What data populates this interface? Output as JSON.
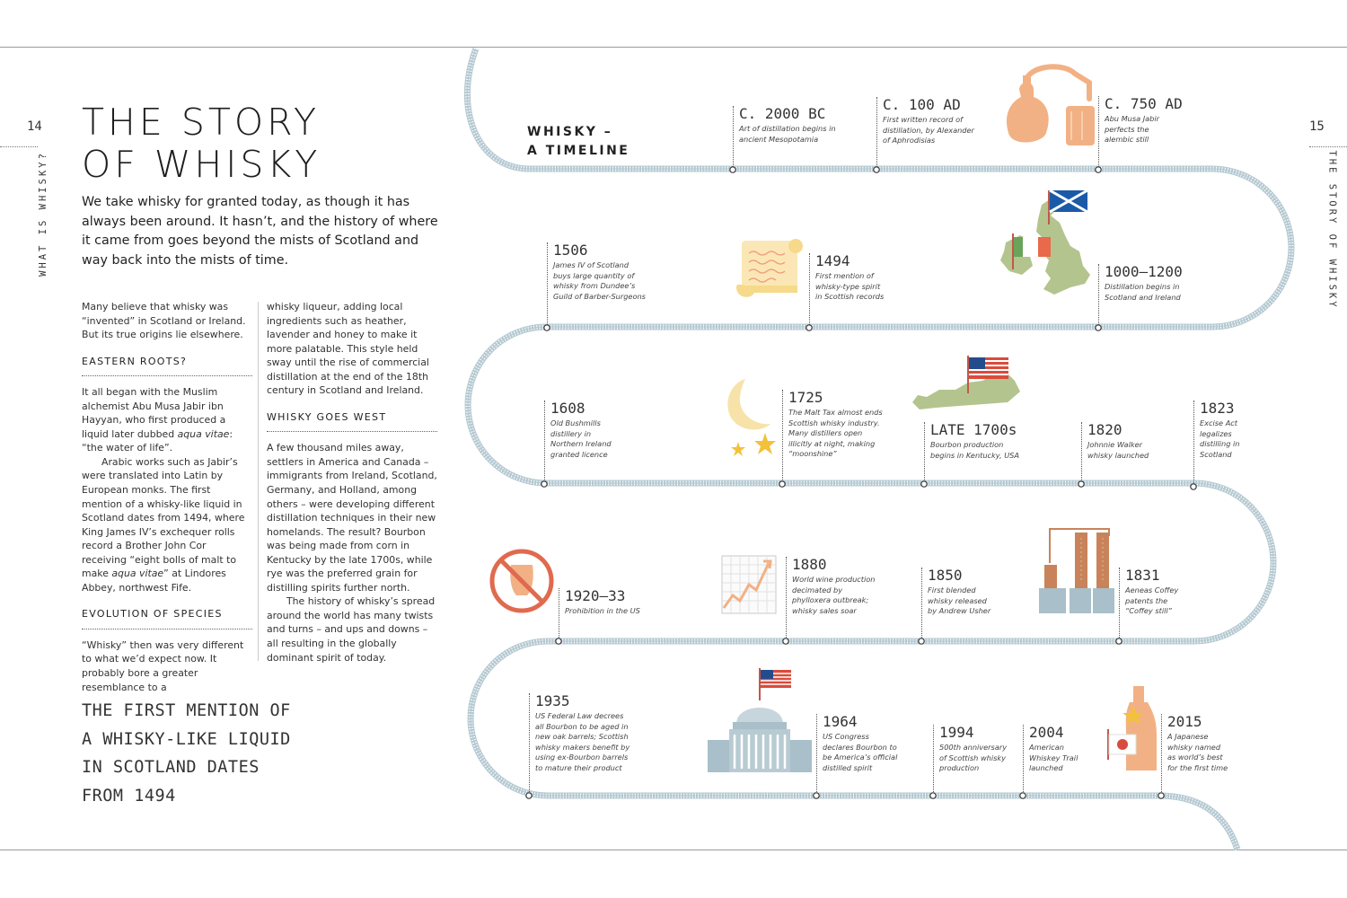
{
  "left_page": {
    "page_number": "14",
    "section_label": "WHAT IS WHISKY?",
    "title_line1": "THE STORY",
    "title_line2": "OF WHISKY",
    "intro": "We take whisky for granted today, as though it has always been around. It hasn’t, and the history of where it came from goes beyond the mists of Scotland and way back into the mists of time.",
    "col1": {
      "p1": "Many believe that whisky was “invented” in Scotland or Ireland. But its true origins lie elsewhere.",
      "h_eastern": "EASTERN ROOTS?",
      "p2_before": "It all began with the Muslim alchemist Abu Musa Jabir ibn Hayyan, who first produced a liquid later dubbed ",
      "p2_em": "aqua vitae",
      "p2_after": ": “the water of life”.",
      "p3_before": "Arabic works such as Jabir’s were translated into Latin by European monks. The first mention of a whisky-like liquid in Scotland dates from 1494, where King James IV’s exchequer rolls record a Brother John Cor receiving “eight bolls of malt to make ",
      "p3_em": "aqua vitae",
      "p3_after": "” at Lindores Abbey, northwest Fife.",
      "h_evolution": "EVOLUTION OF SPECIES",
      "p4": "“Whisky” then was very different to what we’d expect now. It probably bore a greater resemblance to a"
    },
    "col2": {
      "p1": "whisky liqueur, adding local ingredients such as heather, lavender and honey to make it more palatable. This style held sway until the rise of commercial distillation at the end of the 18th century in Scotland and Ireland.",
      "h_west": "WHISKY GOES WEST",
      "p2": "A few thousand miles away, settlers in America and Canada – immigrants from Ireland, Scotland, Germany, and Holland, among others – were developing different distillation techniques in their new homelands. The result? Bourbon was being made from corn in Kentucky by the late 1700s, while rye was the preferred grain for distilling spirits further north.",
      "p3": "The history of whisky’s spread around the world has many twists and turns – and ups and downs – all resulting in the globally dominant spirit of today."
    },
    "quote": [
      "THE FIRST MENTION OF",
      "A WHISKY-LIKE LIQUID",
      "IN SCOTLAND DATES",
      "FROM 1494"
    ]
  },
  "right_page": {
    "page_number": "15",
    "section_label": "THE STORY OF WHISKY",
    "timeline_heading_line1": "WHISKY –",
    "timeline_heading_line2": "A TIMELINE",
    "events": [
      {
        "year": "C. 2000 BC",
        "lines": [
          "Art of distillation begins in",
          "ancient Mesopotamia"
        ]
      },
      {
        "year": "C. 100 AD",
        "lines": [
          "First written record of",
          "distillation, by Alexander",
          "of Aphrodisias"
        ]
      },
      {
        "year": "C. 750 AD",
        "lines": [
          "Abu Musa Jabir",
          "perfects the",
          "alembic still"
        ]
      },
      {
        "year": "1506",
        "lines": [
          "James IV of Scotland",
          "buys large quantity of",
          "whisky from Dundee’s",
          "Guild of Barber-Surgeons"
        ]
      },
      {
        "year": "1494",
        "lines": [
          "First mention of",
          "whisky-type spirit",
          "in Scottish records"
        ]
      },
      {
        "year": "1000–1200",
        "lines": [
          "Distillation begins in",
          "Scotland and Ireland"
        ]
      },
      {
        "year": "1608",
        "lines": [
          "Old Bushmills",
          "distillery in",
          "Northern Ireland",
          "granted licence"
        ]
      },
      {
        "year": "1725",
        "lines": [
          "The Malt Tax almost ends",
          "Scottish whisky industry.",
          "Many distillers open",
          "illicitly at night, making",
          "“moonshine”"
        ]
      },
      {
        "year": "LATE 1700s",
        "lines": [
          "Bourbon production",
          "begins in Kentucky, USA"
        ]
      },
      {
        "year": "1820",
        "lines": [
          "Johnnie Walker",
          "whisky launched"
        ]
      },
      {
        "year": "1823",
        "lines": [
          "Excise Act",
          "legalizes",
          "distilling in",
          "Scotland"
        ]
      },
      {
        "year": "1920–33",
        "lines": [
          "Prohibition in the US"
        ]
      },
      {
        "year": "1880",
        "lines": [
          "World wine production",
          "decimated by",
          "phylloxera outbreak;",
          "whisky sales soar"
        ]
      },
      {
        "year": "1850",
        "lines": [
          "First blended",
          "whisky released",
          "by Andrew Usher"
        ]
      },
      {
        "year": "1831",
        "lines": [
          "Aeneas Coffey",
          "patents the",
          "“Coffey still”"
        ]
      },
      {
        "year": "1935",
        "lines": [
          "US Federal Law decrees",
          "all Bourbon to be aged in",
          "new oak barrels; Scottish",
          "whisky makers benefit by",
          "using ex-Bourbon barrels",
          "to mature their product"
        ]
      },
      {
        "year": "1964",
        "lines": [
          "US Congress",
          "declares Bourbon to",
          "be America’s official",
          "distilled spirit"
        ]
      },
      {
        "year": "1994",
        "lines": [
          "500th anniversary",
          "of Scottish whisky",
          "production"
        ]
      },
      {
        "year": "2004",
        "lines": [
          "American",
          "Whiskey Trail",
          "launched"
        ]
      },
      {
        "year": "2015",
        "lines": [
          "A Japanese",
          "whisky named",
          "as world’s best",
          "for the first time"
        ]
      }
    ]
  },
  "colors": {
    "track": "#b5c9d2",
    "copper": "#f2b184",
    "map_green": "#b4c48e",
    "scroll": "#f6d98a",
    "no_sign": "#e06a4e",
    "building": "#a9bfc9",
    "star": "#f3c13a"
  }
}
